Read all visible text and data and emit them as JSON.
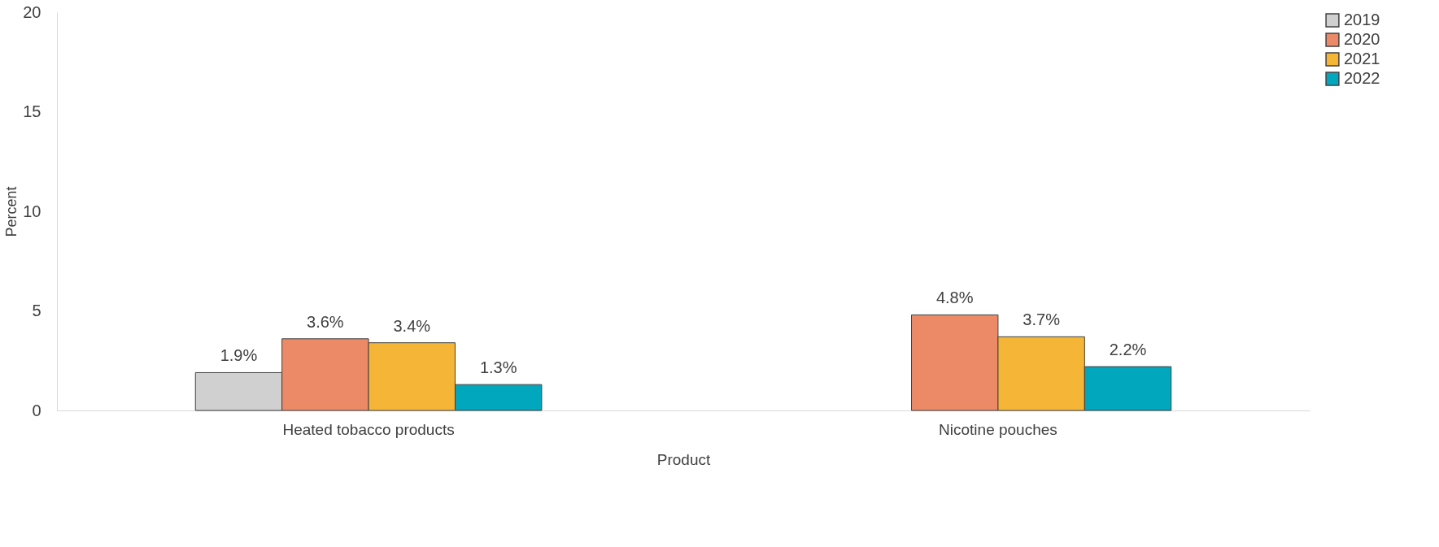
{
  "chart_data": {
    "type": "bar",
    "xlabel": "Product",
    "ylabel": "Percent",
    "categories": [
      "Heated tobacco products",
      "Nicotine pouches"
    ],
    "series": [
      {
        "name": "2019",
        "color": "#d0d0d0",
        "values": [
          1.9,
          null
        ],
        "value_labels": [
          "1.9%",
          null
        ]
      },
      {
        "name": "2020",
        "color": "#ec8a68",
        "values": [
          3.6,
          4.8
        ],
        "value_labels": [
          "3.6%",
          "4.8%"
        ]
      },
      {
        "name": "2021",
        "color": "#f5b638",
        "values": [
          3.4,
          3.7
        ],
        "value_labels": [
          "3.4%",
          "3.7%"
        ]
      },
      {
        "name": "2022",
        "color": "#00a7bd",
        "values": [
          1.3,
          2.2
        ],
        "value_labels": [
          "1.3%",
          "2.2%"
        ]
      }
    ],
    "ylim": [
      0,
      20
    ],
    "yticks": [
      0,
      5,
      10,
      15,
      20
    ],
    "grid": false,
    "legend": "right"
  }
}
